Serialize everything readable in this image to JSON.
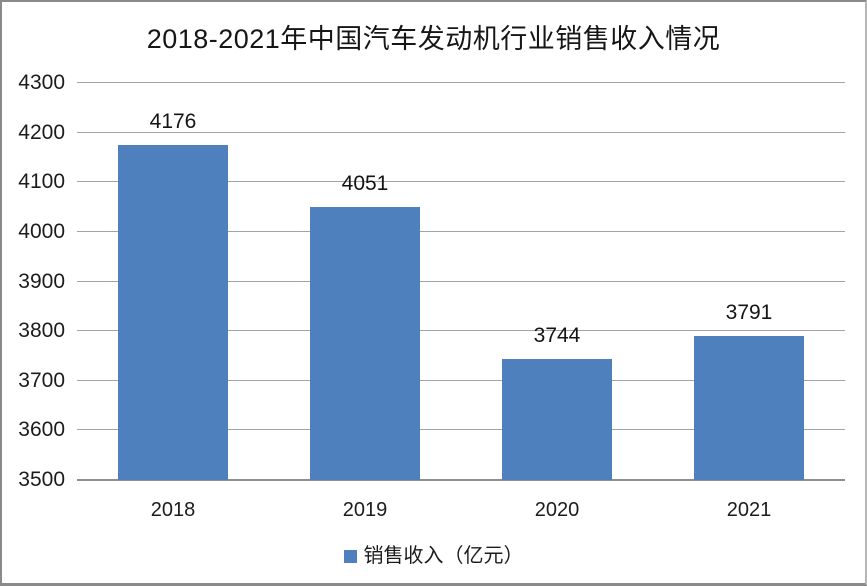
{
  "chart": {
    "title": "2018-2021年中国汽车发动机行业销售收入情况",
    "legend_label": "销售收入（亿元）"
  },
  "chart_data": {
    "type": "bar",
    "title": "2018-2021年中国汽车发动机行业销售收入情况",
    "categories": [
      "2018",
      "2019",
      "2020",
      "2021"
    ],
    "series": [
      {
        "name": "销售收入（亿元）",
        "values": [
          4176,
          4051,
          3744,
          3791
        ]
      }
    ],
    "data_labels": [
      4176,
      4051,
      3744,
      3791
    ],
    "xlabel": "",
    "ylabel": "",
    "ylim": [
      3500,
      4300
    ],
    "ytick_step": 100,
    "yticks": [
      3500,
      3600,
      3700,
      3800,
      3900,
      4000,
      4100,
      4200,
      4300
    ],
    "grid": true,
    "legend_position": "bottom",
    "colors": {
      "bar": "#4d80bd",
      "gridline": "#a3a3a3",
      "axis_line": "#8e8e8e",
      "text": "#1c1c1c"
    }
  }
}
